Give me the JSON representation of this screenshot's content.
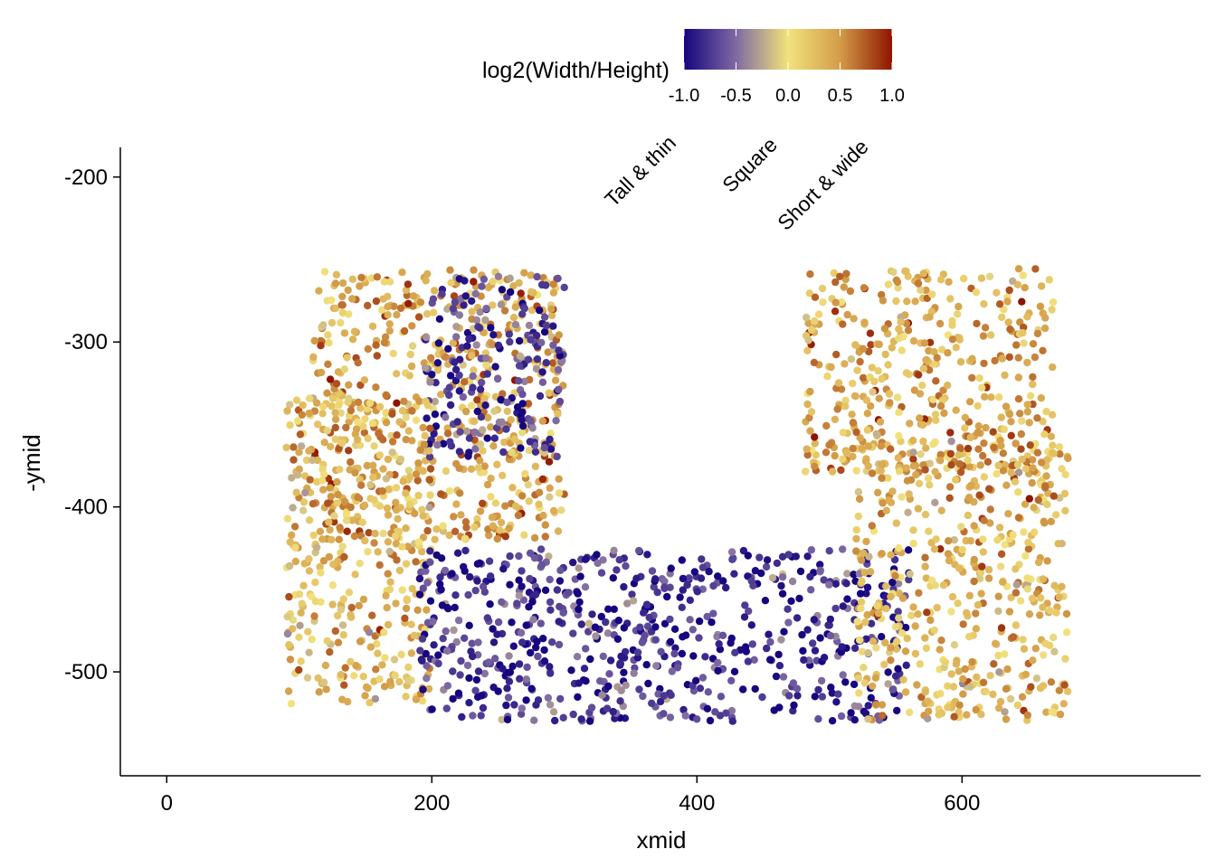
{
  "chart_data": {
    "type": "scatter",
    "xlabel": "xmid",
    "ylabel": "-ymid",
    "xlim": [
      -35,
      780
    ],
    "ylim": [
      -563,
      -182
    ],
    "x_ticks": [
      0,
      200,
      400,
      600
    ],
    "x_tick_labels": [
      "0",
      "200",
      "400",
      "600"
    ],
    "y_ticks": [
      -200,
      -300,
      -400,
      -500
    ],
    "y_tick_labels": [
      "-200",
      "-300",
      "-400",
      "-500"
    ],
    "grid": false,
    "color_scale": {
      "title": "log2(Width/Height)",
      "position": "top",
      "range": [
        -1.0,
        1.0
      ],
      "ticks": [
        -1.0,
        -0.5,
        0.0,
        0.5,
        1.0
      ],
      "tick_labels": [
        "-1.0",
        "-0.5",
        "0.0",
        "0.5",
        "1.0"
      ],
      "stops": [
        {
          "value": -1.0,
          "color": "#16057f"
        },
        {
          "value": -0.5,
          "color": "#7f6aa3"
        },
        {
          "value": 0.0,
          "color": "#f2e27c"
        },
        {
          "value": 0.5,
          "color": "#d39c48"
        },
        {
          "value": 1.0,
          "color": "#8f1400"
        }
      ]
    },
    "annotations": [
      "Tall & thin",
      "Square",
      "Short & wide"
    ],
    "clusters": [
      {
        "region": "upper-left arm",
        "x": [
          110,
          300
        ],
        "y": [
          -420,
          -255
        ],
        "typical_log2_ratio": 0.4
      },
      {
        "region": "upper-left dense block",
        "x": [
          195,
          300
        ],
        "y": [
          -370,
          -260
        ],
        "typical_log2_ratio": -0.7
      },
      {
        "region": "left wall",
        "x": [
          90,
          200
        ],
        "y": [
          -520,
          -330
        ],
        "typical_log2_ratio": 0.3
      },
      {
        "region": "bottom",
        "x": [
          190,
          560
        ],
        "y": [
          -530,
          -425
        ],
        "typical_log2_ratio": -0.8
      },
      {
        "region": "right wall",
        "x": [
          520,
          680
        ],
        "y": [
          -530,
          -360
        ],
        "typical_log2_ratio": 0.3
      },
      {
        "region": "upper-right arm",
        "x": [
          480,
          670
        ],
        "y": [
          -380,
          -255
        ],
        "typical_log2_ratio": 0.4
      }
    ]
  }
}
